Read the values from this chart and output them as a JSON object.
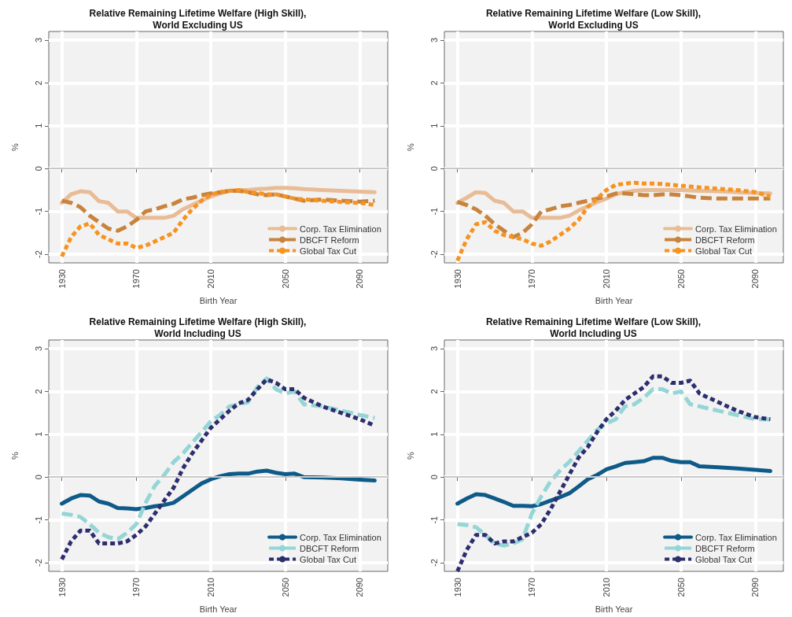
{
  "chart_data": [
    {
      "type": "line",
      "title": "Relative Remaining Lifetime Welfare (High Skill),\nWorld Excluding US",
      "xlabel": "Birth Year",
      "ylabel": "%",
      "x": [
        1930,
        1935,
        1940,
        1945,
        1950,
        1955,
        1960,
        1965,
        1970,
        1975,
        1980,
        1985,
        1990,
        1995,
        2000,
        2005,
        2010,
        2015,
        2020,
        2025,
        2030,
        2035,
        2040,
        2045,
        2050,
        2055,
        2060,
        2070,
        2080,
        2090,
        2098
      ],
      "xlim": [
        1923,
        2105
      ],
      "xticks": [
        1930,
        1970,
        2010,
        2050,
        2090
      ],
      "ylim": [
        -2.2,
        3.2
      ],
      "yticks": [
        -2,
        -1,
        0,
        1,
        2,
        3
      ],
      "grid": true,
      "legend": "bottom right",
      "marker": "none",
      "ref_lines": [
        {
          "axis": "y",
          "value": 0,
          "color": "#c8c8c8"
        }
      ],
      "series": [
        {
          "name": "Corp. Tax Elimination",
          "color": "#e9bc98",
          "line_style": "solid",
          "values": [
            -0.8,
            -0.6,
            -0.53,
            -0.55,
            -0.76,
            -0.8,
            -1.0,
            -1.0,
            -1.15,
            -1.15,
            -1.15,
            -1.15,
            -1.1,
            -0.95,
            -0.85,
            -0.75,
            -0.65,
            -0.58,
            -0.52,
            -0.5,
            -0.5,
            -0.48,
            -0.47,
            -0.45,
            -0.45,
            -0.46,
            -0.48,
            -0.5,
            -0.52,
            -0.54,
            -0.55
          ]
        },
        {
          "name": "DBCFT Reform",
          "color": "#c8833c",
          "line_style": "dashed",
          "values": [
            -0.75,
            -0.8,
            -0.9,
            -1.1,
            -1.25,
            -1.4,
            -1.45,
            -1.35,
            -1.2,
            -1.0,
            -0.95,
            -0.88,
            -0.82,
            -0.72,
            -0.68,
            -0.62,
            -0.58,
            -0.55,
            -0.52,
            -0.52,
            -0.55,
            -0.6,
            -0.62,
            -0.6,
            -0.65,
            -0.7,
            -0.75,
            -0.72,
            -0.75,
            -0.77,
            -0.75
          ]
        },
        {
          "name": "Global Tax Cut",
          "color": "#f7931e",
          "line_style": "dotted",
          "values": [
            -2.05,
            -1.6,
            -1.35,
            -1.28,
            -1.55,
            -1.65,
            -1.75,
            -1.75,
            -1.85,
            -1.8,
            -1.7,
            -1.6,
            -1.5,
            -1.2,
            -0.95,
            -0.75,
            -0.6,
            -0.55,
            -0.52,
            -0.5,
            -0.55,
            -0.57,
            -0.6,
            -0.6,
            -0.65,
            -0.7,
            -0.72,
            -0.75,
            -0.78,
            -0.8,
            -0.85
          ]
        }
      ]
    },
    {
      "type": "line",
      "title": "Relative Remaining Lifetime Welfare (Low Skill),\nWorld Excluding US",
      "xlabel": "Birth Year",
      "ylabel": "%",
      "x": [
        1930,
        1935,
        1940,
        1945,
        1950,
        1955,
        1960,
        1965,
        1970,
        1975,
        1980,
        1985,
        1990,
        1995,
        2000,
        2005,
        2010,
        2015,
        2020,
        2025,
        2030,
        2035,
        2040,
        2045,
        2050,
        2055,
        2060,
        2070,
        2080,
        2090,
        2098
      ],
      "xlim": [
        1923,
        2105
      ],
      "xticks": [
        1930,
        1970,
        2010,
        2050,
        2090
      ],
      "ylim": [
        -2.2,
        3.2
      ],
      "yticks": [
        -2,
        -1,
        0,
        1,
        2,
        3
      ],
      "grid": true,
      "legend": "bottom right",
      "marker": "none",
      "ref_lines": [
        {
          "axis": "y",
          "value": 0,
          "color": "#c8c8c8"
        }
      ],
      "series": [
        {
          "name": "Corp. Tax Elimination",
          "color": "#e9bc98",
          "line_style": "solid",
          "values": [
            -0.8,
            -0.68,
            -0.55,
            -0.57,
            -0.75,
            -0.8,
            -1.0,
            -1.0,
            -1.15,
            -1.15,
            -1.15,
            -1.15,
            -1.1,
            -0.98,
            -0.88,
            -0.78,
            -0.7,
            -0.6,
            -0.55,
            -0.52,
            -0.5,
            -0.5,
            -0.5,
            -0.5,
            -0.5,
            -0.51,
            -0.52,
            -0.53,
            -0.55,
            -0.57,
            -0.58
          ]
        },
        {
          "name": "DBCFT Reform",
          "color": "#c8833c",
          "line_style": "dashed",
          "values": [
            -0.78,
            -0.85,
            -0.95,
            -1.1,
            -1.3,
            -1.45,
            -1.6,
            -1.5,
            -1.3,
            -1.0,
            -0.95,
            -0.88,
            -0.85,
            -0.8,
            -0.75,
            -0.7,
            -0.65,
            -0.58,
            -0.58,
            -0.6,
            -0.62,
            -0.62,
            -0.6,
            -0.6,
            -0.62,
            -0.65,
            -0.68,
            -0.7,
            -0.7,
            -0.7,
            -0.7
          ]
        },
        {
          "name": "Global Tax Cut",
          "color": "#f7931e",
          "line_style": "dotted",
          "values": [
            -2.15,
            -1.65,
            -1.3,
            -1.25,
            -1.45,
            -1.55,
            -1.6,
            -1.65,
            -1.75,
            -1.8,
            -1.7,
            -1.55,
            -1.4,
            -1.2,
            -0.9,
            -0.7,
            -0.5,
            -0.38,
            -0.35,
            -0.33,
            -0.35,
            -0.35,
            -0.36,
            -0.38,
            -0.4,
            -0.42,
            -0.44,
            -0.47,
            -0.5,
            -0.55,
            -0.65
          ]
        }
      ]
    },
    {
      "type": "line",
      "title": "Relative Remaining Lifetime Welfare (High Skill),\nWorld Including US",
      "xlabel": "Birth Year",
      "ylabel": "%",
      "x": [
        1930,
        1935,
        1940,
        1945,
        1950,
        1955,
        1960,
        1965,
        1970,
        1975,
        1980,
        1985,
        1990,
        1995,
        2000,
        2005,
        2010,
        2015,
        2020,
        2025,
        2030,
        2035,
        2040,
        2045,
        2050,
        2055,
        2060,
        2070,
        2080,
        2090,
        2098
      ],
      "xlim": [
        1923,
        2105
      ],
      "xticks": [
        1930,
        1970,
        2010,
        2050,
        2090
      ],
      "ylim": [
        -2.2,
        3.2
      ],
      "yticks": [
        -2,
        -1,
        0,
        1,
        2,
        3
      ],
      "grid": true,
      "legend": "bottom right",
      "marker": "none",
      "ref_lines": [
        {
          "axis": "y",
          "value": 0,
          "color": "#c8c8c8"
        }
      ],
      "series": [
        {
          "name": "Corp. Tax Elimination",
          "color": "#0e5a88",
          "line_style": "solid",
          "values": [
            -0.62,
            -0.5,
            -0.42,
            -0.43,
            -0.57,
            -0.62,
            -0.72,
            -0.73,
            -0.75,
            -0.72,
            -0.68,
            -0.65,
            -0.6,
            -0.45,
            -0.3,
            -0.15,
            -0.05,
            0.02,
            0.07,
            0.08,
            0.08,
            0.13,
            0.15,
            0.1,
            0.07,
            0.08,
            0.0,
            -0.01,
            -0.03,
            -0.06,
            -0.08
          ]
        },
        {
          "name": "DBCFT Reform",
          "color": "#94d5d6",
          "line_style": "dashed",
          "values": [
            -0.85,
            -0.88,
            -0.93,
            -1.1,
            -1.3,
            -1.4,
            -1.45,
            -1.3,
            -1.1,
            -0.6,
            -0.2,
            0.05,
            0.35,
            0.55,
            0.8,
            1.05,
            1.3,
            1.45,
            1.65,
            1.7,
            1.75,
            2.1,
            2.3,
            2.05,
            1.95,
            2.0,
            1.7,
            1.65,
            1.55,
            1.45,
            1.38
          ]
        },
        {
          "name": "Global Tax Cut",
          "color": "#2d2e6e",
          "line_style": "dotted",
          "values": [
            -1.92,
            -1.5,
            -1.25,
            -1.25,
            -1.55,
            -1.55,
            -1.55,
            -1.5,
            -1.35,
            -1.15,
            -0.85,
            -0.55,
            -0.25,
            0.2,
            0.55,
            0.85,
            1.15,
            1.35,
            1.55,
            1.72,
            1.8,
            2.05,
            2.28,
            2.2,
            2.05,
            2.05,
            1.85,
            1.65,
            1.5,
            1.35,
            1.2
          ]
        }
      ]
    },
    {
      "type": "line",
      "title": "Relative Remaining Lifetime Welfare (Low Skill),\nWorld Including US",
      "xlabel": "Birth Year",
      "ylabel": "%",
      "x": [
        1930,
        1935,
        1940,
        1945,
        1950,
        1955,
        1960,
        1965,
        1970,
        1975,
        1980,
        1985,
        1990,
        1995,
        2000,
        2005,
        2010,
        2015,
        2020,
        2025,
        2030,
        2035,
        2040,
        2045,
        2050,
        2055,
        2060,
        2070,
        2080,
        2090,
        2098
      ],
      "xlim": [
        1923,
        2105
      ],
      "xticks": [
        1930,
        1970,
        2010,
        2050,
        2090
      ],
      "ylim": [
        -2.2,
        3.2
      ],
      "yticks": [
        -2,
        -1,
        0,
        1,
        2,
        3
      ],
      "grid": true,
      "legend": "bottom right",
      "marker": "none",
      "ref_lines": [
        {
          "axis": "y",
          "value": 0,
          "color": "#c8c8c8"
        }
      ],
      "series": [
        {
          "name": "Corp. Tax Elimination",
          "color": "#0e5a88",
          "line_style": "solid",
          "values": [
            -0.62,
            -0.5,
            -0.4,
            -0.42,
            -0.5,
            -0.58,
            -0.67,
            -0.67,
            -0.68,
            -0.63,
            -0.55,
            -0.47,
            -0.38,
            -0.22,
            -0.05,
            0.05,
            0.18,
            0.25,
            0.33,
            0.35,
            0.37,
            0.45,
            0.45,
            0.38,
            0.35,
            0.35,
            0.25,
            0.23,
            0.2,
            0.17,
            0.14
          ]
        },
        {
          "name": "DBCFT Reform",
          "color": "#94d5d6",
          "line_style": "dashed",
          "values": [
            -1.1,
            -1.12,
            -1.17,
            -1.35,
            -1.55,
            -1.6,
            -1.55,
            -1.45,
            -0.85,
            -0.45,
            -0.1,
            0.15,
            0.35,
            0.6,
            0.85,
            1.1,
            1.25,
            1.35,
            1.65,
            1.7,
            1.85,
            2.05,
            2.05,
            1.95,
            2.0,
            1.7,
            1.65,
            1.55,
            1.45,
            1.35,
            1.35
          ]
        },
        {
          "name": "Global Tax Cut",
          "color": "#2d2e6e",
          "line_style": "dotted",
          "values": [
            -2.2,
            -1.7,
            -1.35,
            -1.35,
            -1.55,
            -1.5,
            -1.5,
            -1.4,
            -1.3,
            -1.1,
            -0.75,
            -0.35,
            0.05,
            0.45,
            0.7,
            1.05,
            1.35,
            1.55,
            1.8,
            1.95,
            2.1,
            2.35,
            2.35,
            2.2,
            2.2,
            2.25,
            1.95,
            1.75,
            1.55,
            1.4,
            1.35
          ]
        }
      ]
    }
  ]
}
